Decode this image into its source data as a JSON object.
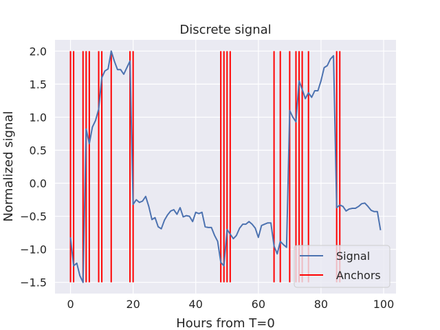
{
  "chart_data": {
    "type": "line",
    "title": "Discrete signal",
    "xlabel": "Hours from T=0",
    "ylabel": "Normalized signal",
    "xlim": [
      -4.95,
      103.95
    ],
    "ylim": [
      -1.67,
      2.17
    ],
    "xticks": [
      0,
      20,
      40,
      60,
      80,
      100
    ],
    "yticks": [
      -1.5,
      -1.0,
      -0.5,
      0.0,
      0.5,
      1.0,
      1.5,
      2.0
    ],
    "xtick_labels": [
      "0",
      "20",
      "40",
      "60",
      "80",
      "100"
    ],
    "ytick_labels": [
      "−1.5",
      "−1.0",
      "−0.5",
      "0.0",
      "0.5",
      "1.0",
      "1.5",
      "2.0"
    ],
    "grid": true,
    "legend_position": "lower-right",
    "colors": {
      "background": "#eaeaf2",
      "grid": "#ffffff",
      "signal": "#4c72b0",
      "anchors": "#ff0000"
    },
    "series": [
      {
        "name": "Signal",
        "kind": "line",
        "x": [
          0,
          1,
          2,
          3,
          4,
          5,
          6,
          7,
          8,
          9,
          10,
          11,
          12,
          13,
          14,
          15,
          16,
          17,
          18,
          19,
          20,
          21,
          22,
          23,
          24,
          25,
          26,
          27,
          28,
          29,
          30,
          31,
          32,
          33,
          34,
          35,
          36,
          37,
          38,
          39,
          40,
          41,
          42,
          43,
          44,
          45,
          46,
          47,
          48,
          49,
          50,
          51,
          52,
          53,
          54,
          55,
          56,
          57,
          58,
          59,
          60,
          61,
          62,
          63,
          64,
          65,
          66,
          67,
          68,
          69,
          70,
          71,
          72,
          73,
          74,
          75,
          76,
          77,
          78,
          79,
          80,
          81,
          82,
          83,
          84,
          85,
          86,
          87,
          88,
          89,
          90,
          91,
          92,
          93,
          94,
          95,
          96,
          97,
          98,
          99
        ],
        "y": [
          -0.82,
          -1.25,
          -1.21,
          -1.4,
          -1.5,
          0.82,
          0.6,
          0.85,
          0.95,
          1.12,
          1.6,
          1.7,
          1.73,
          2.0,
          1.85,
          1.72,
          1.72,
          1.65,
          1.75,
          1.85,
          -0.32,
          -0.25,
          -0.29,
          -0.27,
          -0.2,
          -0.35,
          -0.55,
          -0.52,
          -0.66,
          -0.69,
          -0.56,
          -0.48,
          -0.42,
          -0.4,
          -0.47,
          -0.37,
          -0.51,
          -0.49,
          -0.5,
          -0.58,
          -0.44,
          -0.46,
          -0.44,
          -0.66,
          -0.67,
          -0.67,
          -0.79,
          -0.88,
          -1.2,
          -1.25,
          -0.7,
          -0.77,
          -0.84,
          -0.79,
          -0.68,
          -0.62,
          -0.62,
          -0.58,
          -0.62,
          -0.68,
          -0.82,
          -0.64,
          -0.62,
          -0.6,
          -0.6,
          -0.95,
          -1.07,
          -0.88,
          -0.93,
          -0.97,
          1.1,
          1.0,
          0.93,
          1.55,
          1.42,
          1.28,
          1.37,
          1.3,
          1.4,
          1.4,
          1.55,
          1.75,
          1.78,
          1.88,
          1.93,
          -0.37,
          -0.33,
          -0.35,
          -0.42,
          -0.39,
          -0.38,
          -0.38,
          -0.35,
          -0.31,
          -0.3,
          -0.35,
          -0.41,
          -0.43,
          -0.43,
          -0.71
        ]
      },
      {
        "name": "Anchors",
        "kind": "vertical-lines",
        "x": [
          0,
          1,
          4,
          5,
          6,
          9,
          10,
          13,
          19,
          20,
          48,
          49,
          50,
          51,
          65,
          67,
          70,
          72,
          73,
          74,
          76,
          85,
          86
        ],
        "y_range": [
          -1.5,
          2.0
        ]
      }
    ]
  }
}
